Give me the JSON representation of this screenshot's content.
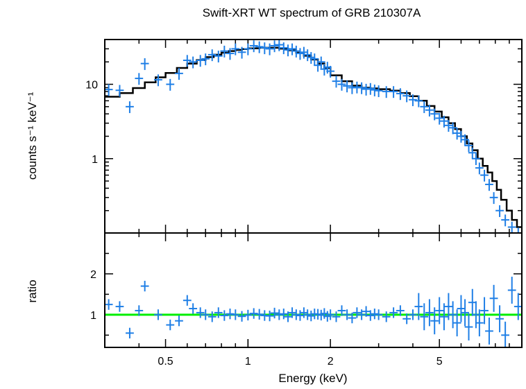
{
  "chart_data": [
    {
      "type": "scatter",
      "panel": "spectrum",
      "title": "Swift-XRT WT spectrum of GRB 210307A",
      "ylabel": "counts s⁻¹ keV⁻¹",
      "xlabel": "",
      "xscale": "log",
      "yscale": "log",
      "xlim": [
        0.3,
        10.0
      ],
      "ylim": [
        0.1,
        40.0
      ],
      "yticks": [
        {
          "value": 1,
          "label": "1"
        },
        {
          "value": 10,
          "label": "10"
        }
      ],
      "colors": {
        "data": "#1f7fe6",
        "model": "#000000"
      },
      "series": [
        {
          "style": "crosses",
          "x": [
            0.31,
            0.34,
            0.37,
            0.4,
            0.42,
            0.47,
            0.52,
            0.56,
            0.6,
            0.63,
            0.67,
            0.7,
            0.74,
            0.78,
            0.82,
            0.86,
            0.9,
            0.95,
            1.0,
            1.05,
            1.1,
            1.15,
            1.2,
            1.25,
            1.3,
            1.35,
            1.4,
            1.45,
            1.5,
            1.55,
            1.6,
            1.65,
            1.7,
            1.75,
            1.8,
            1.85,
            1.9,
            1.95,
            2.0,
            2.1,
            2.2,
            2.3,
            2.4,
            2.5,
            2.6,
            2.7,
            2.8,
            2.9,
            3.0,
            3.2,
            3.4,
            3.6,
            3.8,
            4.0,
            4.2,
            4.4,
            4.6,
            4.8,
            5.0,
            5.2,
            5.4,
            5.6,
            5.8,
            6.0,
            6.2,
            6.4,
            6.6,
            6.8,
            7.0,
            7.3,
            7.6,
            7.9,
            8.3,
            8.7,
            9.2,
            9.7
          ],
          "y": [
            8.5,
            8.3,
            5.0,
            12.0,
            19.0,
            11.5,
            10.0,
            14.0,
            21.0,
            20.0,
            21.0,
            22.0,
            25.0,
            24.0,
            28.0,
            26.0,
            30.0,
            27.0,
            30.0,
            33.0,
            32.0,
            31.0,
            30.0,
            33.0,
            34.0,
            31.0,
            29.0,
            30.0,
            28.0,
            26.0,
            27.0,
            25.0,
            23.0,
            22.0,
            18.0,
            20.0,
            16.0,
            17.0,
            15.0,
            11.0,
            10.0,
            9.5,
            9.0,
            9.2,
            9.0,
            8.6,
            8.8,
            8.4,
            8.2,
            8.0,
            8.0,
            7.5,
            7.0,
            6.2,
            6.0,
            5.0,
            4.5,
            4.0,
            3.5,
            3.2,
            2.8,
            2.6,
            2.2,
            2.0,
            1.8,
            1.5,
            1.2,
            1.0,
            0.75,
            0.6,
            0.45,
            0.3,
            0.2,
            0.15,
            0.12,
            0.1
          ]
        },
        {
          "style": "step",
          "x": [
            0.3,
            0.34,
            0.38,
            0.42,
            0.46,
            0.5,
            0.55,
            0.6,
            0.65,
            0.7,
            0.75,
            0.8,
            0.85,
            0.9,
            0.95,
            1.0,
            1.1,
            1.2,
            1.3,
            1.4,
            1.5,
            1.6,
            1.7,
            1.8,
            1.9,
            2.0,
            2.2,
            2.4,
            2.6,
            2.8,
            3.0,
            3.3,
            3.6,
            3.9,
            4.2,
            4.5,
            4.8,
            5.1,
            5.4,
            5.7,
            6.0,
            6.3,
            6.6,
            6.9,
            7.2,
            7.5,
            7.8,
            8.1,
            8.4,
            8.8,
            9.2,
            9.6,
            10.0
          ],
          "y": [
            6.8,
            7.6,
            8.9,
            10.6,
            12.4,
            14.2,
            16.6,
            19.0,
            21.2,
            23.2,
            25.0,
            26.6,
            28.0,
            29.0,
            29.8,
            30.4,
            31.0,
            31.0,
            30.2,
            28.6,
            26.6,
            24.2,
            21.6,
            19.0,
            16.6,
            13.2,
            11.0,
            9.6,
            9.0,
            8.8,
            8.6,
            8.2,
            7.6,
            6.9,
            6.0,
            5.1,
            4.3,
            3.6,
            3.0,
            2.5,
            2.0,
            1.6,
            1.3,
            1.0,
            0.8,
            0.65,
            0.5,
            0.38,
            0.28,
            0.2,
            0.15,
            0.12,
            0.1
          ]
        }
      ]
    },
    {
      "type": "scatter",
      "panel": "ratio",
      "xlabel": "Energy (keV)",
      "ylabel": "ratio",
      "xscale": "log",
      "xlim": [
        0.3,
        10.0
      ],
      "ylim": [
        0.2,
        3.0
      ],
      "xticks": [
        {
          "value": 0.5,
          "label": "0.5"
        },
        {
          "value": 1,
          "label": "1"
        },
        {
          "value": 2,
          "label": "2"
        },
        {
          "value": 5,
          "label": "5"
        }
      ],
      "yticks": [
        {
          "value": 1,
          "label": "1"
        },
        {
          "value": 2,
          "label": "2"
        }
      ],
      "reference_line": 1.0,
      "colors": {
        "data": "#1f7fe6",
        "reference": "#00ee00"
      },
      "series": [
        {
          "style": "crosses",
          "x": [
            0.31,
            0.34,
            0.37,
            0.4,
            0.42,
            0.47,
            0.52,
            0.56,
            0.6,
            0.63,
            0.67,
            0.7,
            0.74,
            0.78,
            0.82,
            0.86,
            0.9,
            0.95,
            1.0,
            1.05,
            1.1,
            1.15,
            1.2,
            1.25,
            1.3,
            1.35,
            1.4,
            1.45,
            1.5,
            1.55,
            1.6,
            1.65,
            1.7,
            1.75,
            1.8,
            1.85,
            1.9,
            1.95,
            2.0,
            2.1,
            2.2,
            2.3,
            2.4,
            2.5,
            2.6,
            2.7,
            2.8,
            2.9,
            3.0,
            3.2,
            3.4,
            3.6,
            3.8,
            4.0,
            4.2,
            4.4,
            4.6,
            4.8,
            5.0,
            5.2,
            5.4,
            5.6,
            5.8,
            6.0,
            6.2,
            6.4,
            6.6,
            6.8,
            7.0,
            7.3,
            7.6,
            7.9,
            8.3,
            8.7,
            9.2,
            9.7
          ],
          "y": [
            1.25,
            1.2,
            0.55,
            1.1,
            1.7,
            1.0,
            0.75,
            0.85,
            1.35,
            1.15,
            1.05,
            1.0,
            0.95,
            1.05,
            0.98,
            1.02,
            1.0,
            0.96,
            0.99,
            1.03,
            1.01,
            0.98,
            0.97,
            1.04,
            1.0,
            1.02,
            0.95,
            1.05,
            1.0,
            0.98,
            1.05,
            1.0,
            0.97,
            1.02,
            1.01,
            0.99,
            1.03,
            0.96,
            1.0,
            0.95,
            1.1,
            1.0,
            0.92,
            1.05,
            1.0,
            1.08,
            0.98,
            1.02,
            1.0,
            0.95,
            1.05,
            1.1,
            0.9,
            1.0,
            1.2,
            0.95,
            1.05,
            0.85,
            1.1,
            0.95,
            1.2,
            1.0,
            0.8,
            1.15,
            1.05,
            0.7,
            1.3,
            1.0,
            0.8,
            1.1,
            0.6,
            1.4,
            0.9,
            0.5,
            1.6,
            1.2
          ]
        }
      ]
    }
  ]
}
